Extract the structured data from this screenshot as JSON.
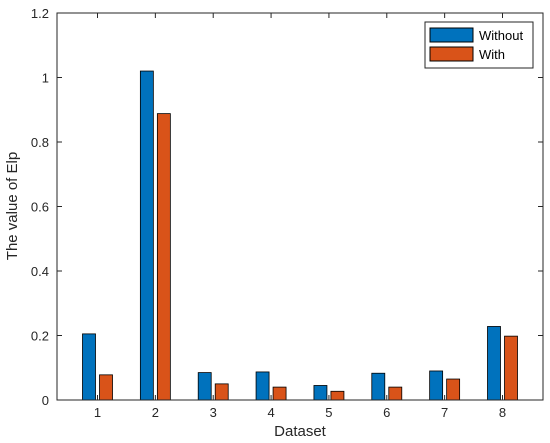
{
  "chart_data": {
    "type": "bar",
    "xlabel": "Dataset",
    "ylabel": "The value of Elp",
    "categories": [
      "1",
      "2",
      "3",
      "4",
      "5",
      "6",
      "7",
      "8"
    ],
    "ylim": [
      0,
      1.2
    ],
    "yticks": [
      "0",
      "0.2",
      "0.4",
      "0.6",
      "0.8",
      "1",
      "1.2"
    ],
    "grid": false,
    "legend_position": "top-right",
    "series": [
      {
        "name": "Without",
        "color": "#0072BD",
        "values": [
          0.205,
          1.02,
          0.085,
          0.087,
          0.045,
          0.083,
          0.09,
          0.228
        ]
      },
      {
        "name": "With",
        "color": "#D95319",
        "values": [
          0.078,
          0.888,
          0.05,
          0.04,
          0.027,
          0.04,
          0.065,
          0.198
        ]
      }
    ]
  }
}
